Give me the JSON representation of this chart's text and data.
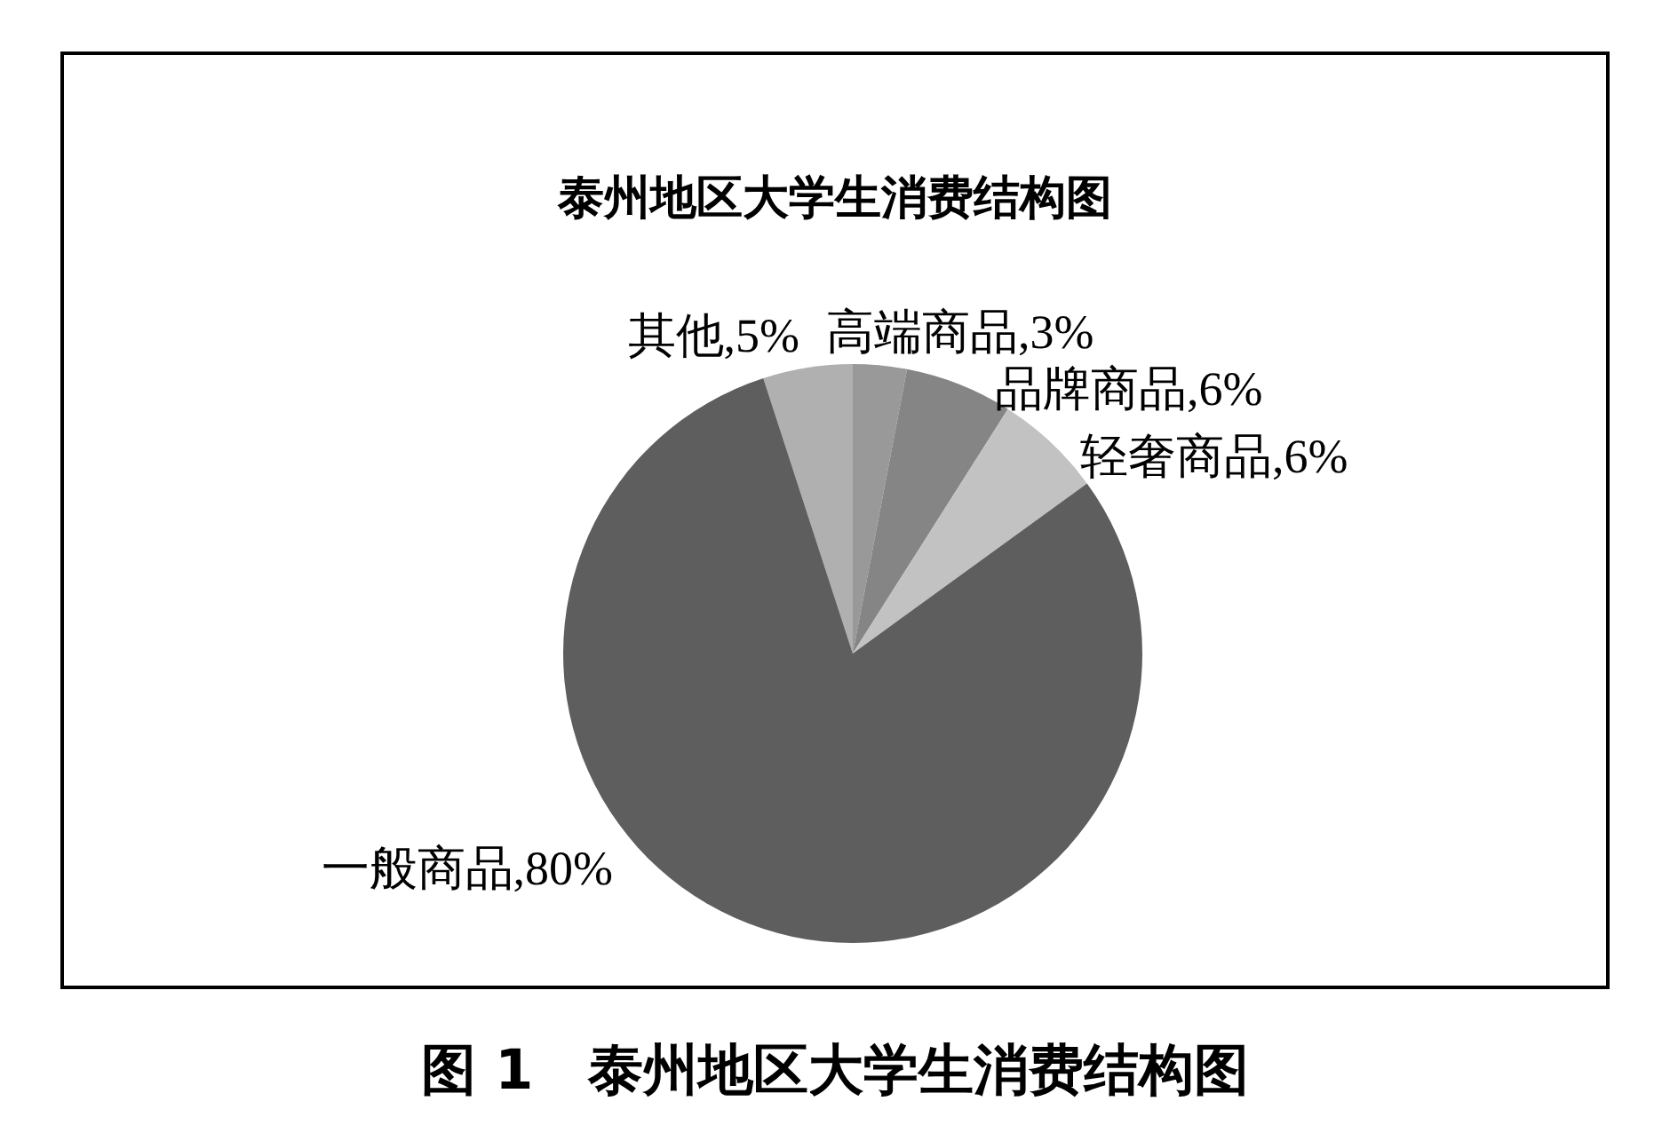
{
  "chart_data": {
    "type": "pie",
    "title": "泰州地区大学生消费结构图",
    "categories": [
      "其他",
      "高端商品",
      "品牌商品",
      "轻奢商品",
      "一般商品"
    ],
    "values": [
      5,
      3,
      6,
      6,
      80
    ],
    "colors": [
      "#b0b0b0",
      "#999999",
      "#858585",
      "#c2c2c2",
      "#5e5e5e"
    ],
    "value_labels": [
      ",5%",
      ",3%",
      ",6%",
      ",6%",
      ",80%"
    ],
    "annotations": [
      "图 1　泰州地区大学生消费结构图"
    ],
    "legend": false
  }
}
